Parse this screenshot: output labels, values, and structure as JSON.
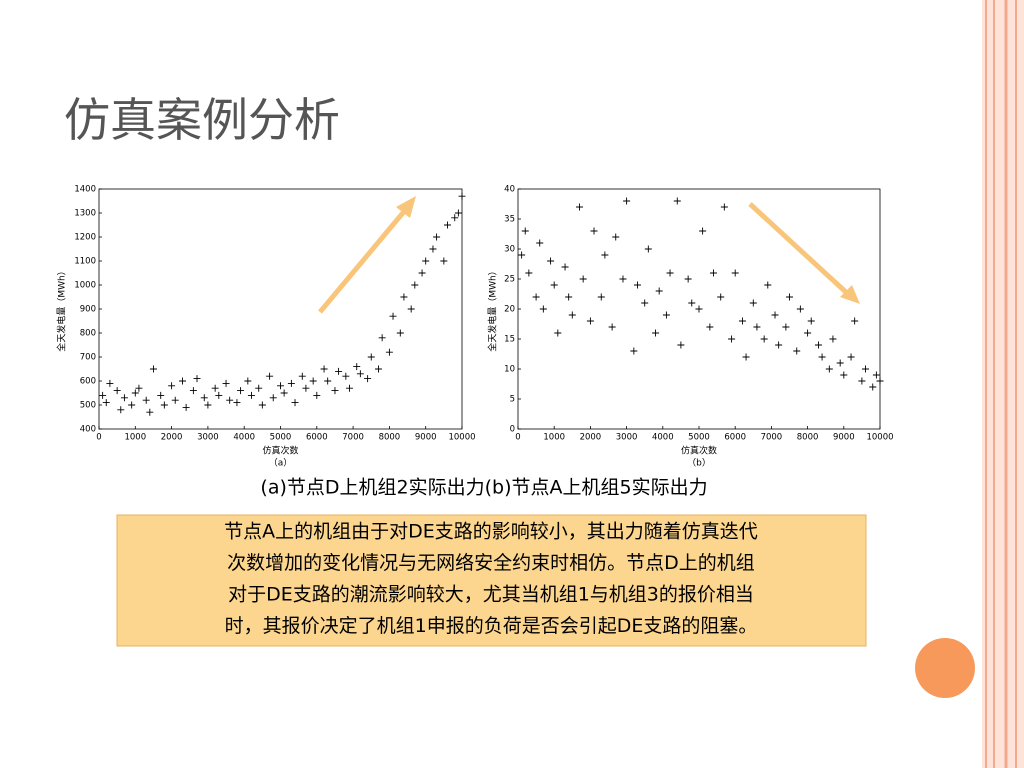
{
  "slide": {
    "title": "仿真案例分析",
    "caption": "(a)节点D上机组2实际出力(b)节点A上机组5实际出力",
    "note_lines": [
      "节点A上的机组由于对DE支路的影响较小，其出力随着仿真迭代",
      "次数增加的变化情况与无网络安全约束时相仿。节点D上的机组",
      "对于DE支路的潮流影响较大，尤其当机组1与机组3的报价相当",
      "时，其报价决定了机组1申报的负荷是否会引起DE支路的阻塞。"
    ]
  },
  "chart_data": [
    {
      "type": "scatter",
      "ylabel": "全天发电量（MWh）",
      "xlabel": "仿真次数",
      "sublabel": "（a）",
      "color": "#000000",
      "xlim": [
        0,
        10000
      ],
      "ylim": [
        400,
        1400
      ],
      "xticks": [
        0,
        1000,
        2000,
        3000,
        4000,
        5000,
        6000,
        7000,
        8000,
        9000,
        10000
      ],
      "yticks": [
        400,
        500,
        600,
        700,
        800,
        900,
        1000,
        1100,
        1200,
        1300,
        1400
      ],
      "x": [
        100,
        200,
        300,
        500,
        600,
        700,
        900,
        1000,
        1100,
        1300,
        1400,
        1500,
        1700,
        1800,
        2000,
        2100,
        2300,
        2400,
        2600,
        2700,
        2900,
        3000,
        3200,
        3300,
        3500,
        3600,
        3800,
        3900,
        4100,
        4200,
        4400,
        4500,
        4700,
        4800,
        5000,
        5100,
        5300,
        5400,
        5600,
        5700,
        5900,
        6000,
        6200,
        6300,
        6500,
        6600,
        6800,
        6900,
        7100,
        7200,
        7400,
        7500,
        7700,
        7800,
        8000,
        8100,
        8300,
        8400,
        8600,
        8700,
        8900,
        9000,
        9200,
        9300,
        9500,
        9600,
        9800,
        9900,
        10000
      ],
      "y": [
        540,
        510,
        590,
        560,
        480,
        530,
        500,
        550,
        570,
        520,
        470,
        650,
        540,
        500,
        580,
        520,
        600,
        490,
        560,
        610,
        530,
        500,
        570,
        540,
        590,
        520,
        510,
        560,
        600,
        540,
        570,
        500,
        620,
        530,
        580,
        550,
        590,
        510,
        620,
        570,
        600,
        540,
        650,
        600,
        560,
        640,
        620,
        570,
        660,
        630,
        610,
        700,
        650,
        780,
        720,
        870,
        800,
        950,
        900,
        1000,
        1050,
        1100,
        1150,
        1200,
        1100,
        1250,
        1280,
        1300,
        1370
      ]
    },
    {
      "type": "scatter",
      "ylabel": "全天发电量（MWh）",
      "xlabel": "仿真次数",
      "sublabel": "（b）",
      "color": "#000000",
      "xlim": [
        0,
        10000
      ],
      "ylim": [
        0,
        40
      ],
      "xticks": [
        0,
        1000,
        2000,
        3000,
        4000,
        5000,
        6000,
        7000,
        8000,
        9000,
        10000
      ],
      "yticks": [
        0,
        5,
        10,
        15,
        20,
        25,
        30,
        35,
        40
      ],
      "x": [
        100,
        200,
        300,
        500,
        600,
        700,
        900,
        1000,
        1100,
        1300,
        1400,
        1500,
        1700,
        1800,
        2000,
        2100,
        2300,
        2400,
        2600,
        2700,
        2900,
        3000,
        3200,
        3300,
        3500,
        3600,
        3800,
        3900,
        4100,
        4200,
        4400,
        4500,
        4700,
        4800,
        5000,
        5100,
        5300,
        5400,
        5600,
        5700,
        5900,
        6000,
        6200,
        6300,
        6500,
        6600,
        6800,
        6900,
        7100,
        7200,
        7400,
        7500,
        7700,
        7800,
        8000,
        8100,
        8300,
        8400,
        8600,
        8700,
        8900,
        9000,
        9200,
        9300,
        9500,
        9600,
        9800,
        9900,
        10000
      ],
      "y": [
        29,
        33,
        26,
        22,
        31,
        20,
        28,
        24,
        16,
        27,
        22,
        19,
        37,
        25,
        18,
        33,
        22,
        29,
        17,
        32,
        25,
        38,
        13,
        24,
        21,
        30,
        16,
        23,
        19,
        26,
        38,
        14,
        25,
        21,
        20,
        33,
        17,
        26,
        22,
        37,
        15,
        26,
        18,
        12,
        21,
        17,
        15,
        24,
        19,
        14,
        17,
        22,
        13,
        20,
        16,
        18,
        14,
        12,
        10,
        15,
        11,
        9,
        12,
        18,
        8,
        10,
        7,
        9,
        8
      ]
    }
  ]
}
